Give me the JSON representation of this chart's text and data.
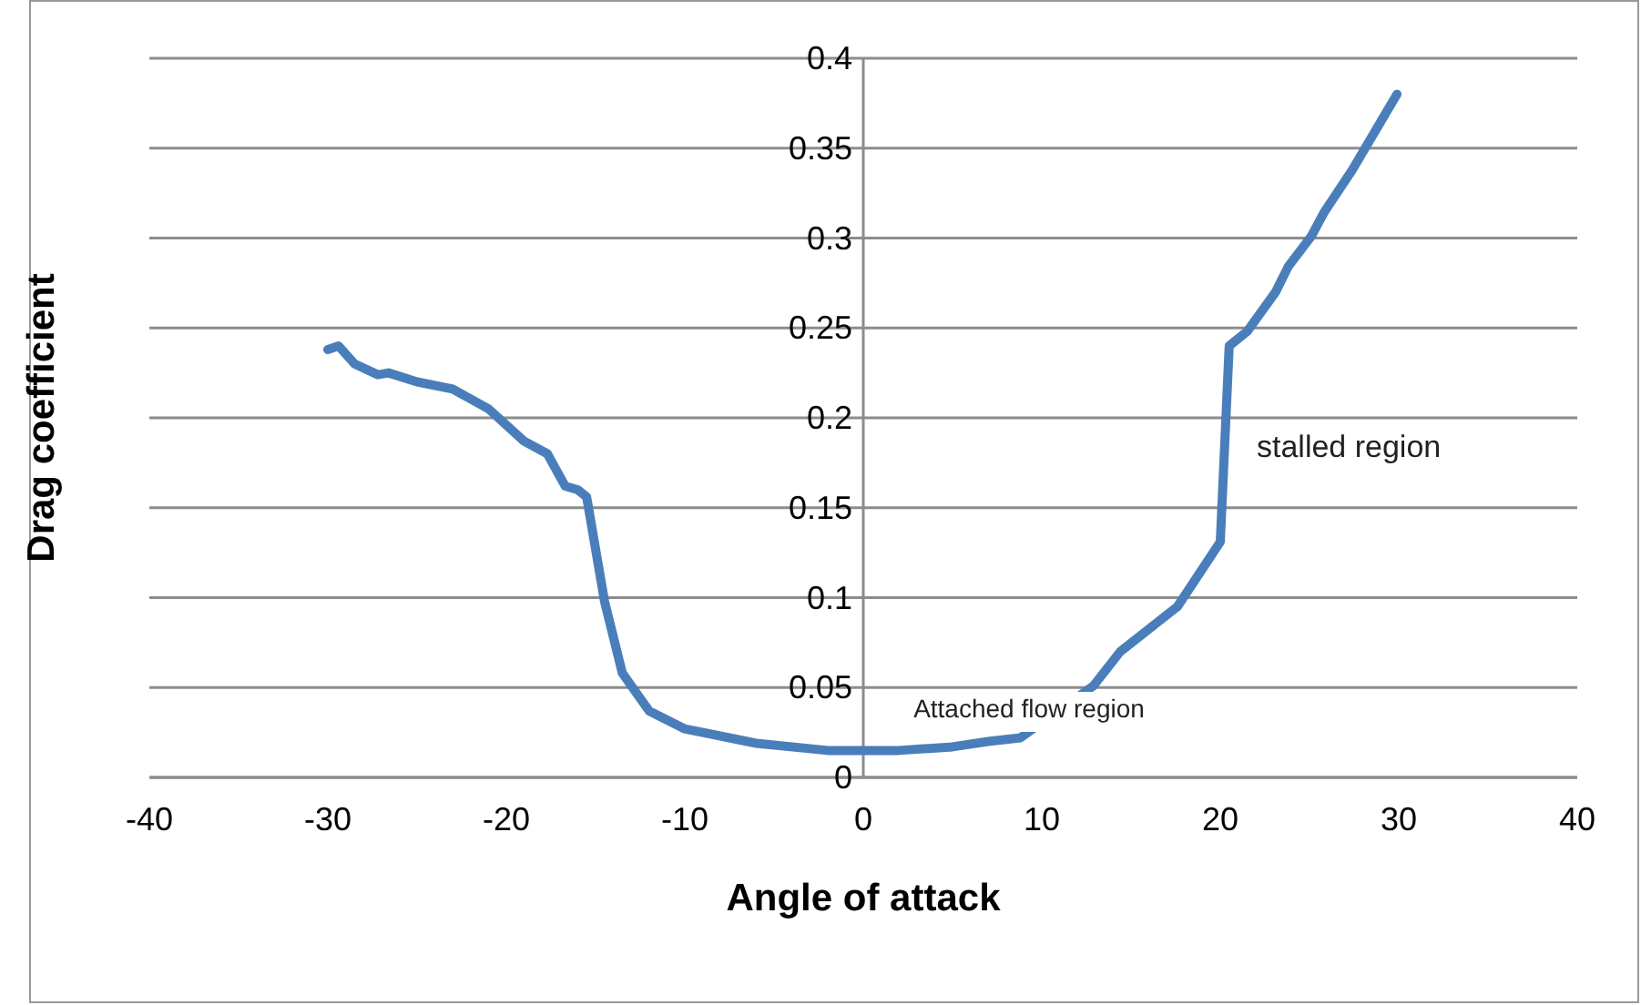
{
  "chart_data": {
    "type": "line",
    "xlabel": "Angle of attack",
    "ylabel": "Drag coefficient",
    "x": [
      -30,
      -29.4,
      -28.5,
      -27.2,
      -26.6,
      -25,
      -23,
      -21,
      -19,
      -17.7,
      -16.7,
      -16,
      -15.5,
      -14.5,
      -13.5,
      -12,
      -10,
      -6,
      -2,
      2,
      5,
      7,
      8.8,
      12.9,
      14.4,
      17.6,
      20,
      20.5,
      21.5,
      23.1,
      23.8,
      25.1,
      25.8,
      27.4,
      29.9
    ],
    "series": [
      {
        "color": "#4a7ebb",
        "values": [
          0.238,
          0.24,
          0.23,
          0.224,
          0.225,
          0.22,
          0.216,
          0.205,
          0.187,
          0.18,
          0.162,
          0.16,
          0.156,
          0.098,
          0.058,
          0.037,
          0.027,
          0.019,
          0.015,
          0.015,
          0.017,
          0.02,
          0.022,
          0.051,
          0.07,
          0.095,
          0.131,
          0.24,
          0.248,
          0.27,
          0.284,
          0.301,
          0.314,
          0.338,
          0.38
        ]
      }
    ],
    "xlim": [
      -40,
      40
    ],
    "xticks": [
      -40,
      -30,
      -20,
      -10,
      0,
      10,
      20,
      30,
      40
    ],
    "ylim": [
      0,
      0.4
    ],
    "yticks": [
      0,
      0.05,
      0.1,
      0.15,
      0.2,
      0.25,
      0.3,
      0.35,
      0.4
    ],
    "grid": "y",
    "marker": "none",
    "line_style": "solid",
    "annotations": [
      "stalled region",
      "Attached flow region"
    ]
  }
}
